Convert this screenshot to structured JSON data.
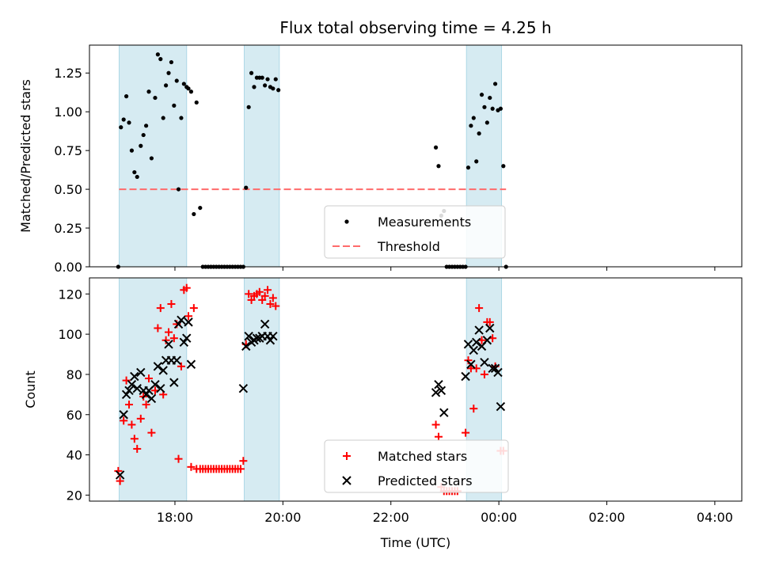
{
  "chart_data": {
    "title": "Flux total observing time = 4.25 h",
    "xlabel": "Time (UTC)",
    "x_ticks": [
      {
        "t": 60,
        "label": "18:00"
      },
      {
        "t": 180,
        "label": "20:00"
      },
      {
        "t": 300,
        "label": "22:00"
      },
      {
        "t": 420,
        "label": "00:00"
      },
      {
        "t": 540,
        "label": "02:00"
      },
      {
        "t": 660,
        "label": "04:00"
      }
    ],
    "xlim": [
      -35,
      690
    ],
    "shaded_intervals": [
      [
        -2,
        73
      ],
      [
        137,
        176
      ],
      [
        384,
        423
      ]
    ],
    "colors": {
      "shade": "#add8e6",
      "measurement": "#000000",
      "threshold": "#ff6b6b",
      "matched": "#ff0000",
      "predicted": "#000000"
    },
    "panels": [
      {
        "type": "scatter",
        "ylabel": "Matched/Predicted stars",
        "ylim": [
          0,
          1.43
        ],
        "yticks": [
          0.0,
          0.25,
          0.5,
          0.75,
          1.0,
          1.25
        ],
        "ytick_labels": [
          "0.00",
          "0.25",
          "0.50",
          "0.75",
          "1.00",
          "1.25"
        ],
        "threshold": {
          "value": 0.5,
          "x": [
            -2,
            428
          ]
        },
        "legend": {
          "placement": "bottom-center",
          "entries": [
            "Measurements",
            "Threshold"
          ]
        },
        "series": [
          {
            "name": "Measurements",
            "marker": "dot",
            "points": [
              [
                -3,
                0.0
              ],
              [
                0,
                0.9
              ],
              [
                3,
                0.95
              ],
              [
                6,
                1.1
              ],
              [
                9,
                0.93
              ],
              [
                12,
                0.75
              ],
              [
                15,
                0.61
              ],
              [
                18,
                0.58
              ],
              [
                22,
                0.78
              ],
              [
                25,
                0.85
              ],
              [
                28,
                0.91
              ],
              [
                31,
                1.13
              ],
              [
                34,
                0.7
              ],
              [
                38,
                1.09
              ],
              [
                41,
                1.37
              ],
              [
                44,
                1.34
              ],
              [
                47,
                0.96
              ],
              [
                50,
                1.17
              ],
              [
                53,
                1.25
              ],
              [
                56,
                1.32
              ],
              [
                59,
                1.04
              ],
              [
                62,
                1.2
              ],
              [
                64,
                0.5
              ],
              [
                67,
                0.96
              ],
              [
                70,
                1.18
              ],
              [
                73,
                1.16
              ],
              [
                75,
                1.15
              ],
              [
                78,
                1.13
              ],
              [
                81,
                0.34
              ],
              [
                84,
                1.06
              ],
              [
                88,
                0.38
              ],
              [
                91,
                0.0
              ],
              [
                94,
                0.0
              ],
              [
                97,
                0.0
              ],
              [
                100,
                0.0
              ],
              [
                103,
                0.0
              ],
              [
                106,
                0.0
              ],
              [
                109,
                0.0
              ],
              [
                112,
                0.0
              ],
              [
                115,
                0.0
              ],
              [
                118,
                0.0
              ],
              [
                121,
                0.0
              ],
              [
                124,
                0.0
              ],
              [
                127,
                0.0
              ],
              [
                130,
                0.0
              ],
              [
                133,
                0.0
              ],
              [
                136,
                0.0
              ],
              [
                139,
                0.51
              ],
              [
                142,
                1.03
              ],
              [
                145,
                1.25
              ],
              [
                148,
                1.16
              ],
              [
                151,
                1.22
              ],
              [
                154,
                1.22
              ],
              [
                157,
                1.22
              ],
              [
                160,
                1.17
              ],
              [
                163,
                1.21
              ],
              [
                166,
                1.16
              ],
              [
                169,
                1.15
              ],
              [
                172,
                1.21
              ],
              [
                175,
                1.14
              ],
              [
                350,
                0.77
              ],
              [
                353,
                0.65
              ],
              [
                356,
                0.33
              ],
              [
                359,
                0.36
              ],
              [
                362,
                0.0
              ],
              [
                365,
                0.0
              ],
              [
                368,
                0.0
              ],
              [
                371,
                0.0
              ],
              [
                374,
                0.0
              ],
              [
                377,
                0.0
              ],
              [
                380,
                0.0
              ],
              [
                383,
                0.0
              ],
              [
                386,
                0.64
              ],
              [
                389,
                0.91
              ],
              [
                392,
                0.96
              ],
              [
                395,
                0.68
              ],
              [
                398,
                0.86
              ],
              [
                401,
                1.11
              ],
              [
                404,
                1.03
              ],
              [
                407,
                0.93
              ],
              [
                410,
                1.09
              ],
              [
                413,
                1.02
              ],
              [
                416,
                1.18
              ],
              [
                419,
                1.01
              ],
              [
                422,
                1.02
              ],
              [
                425,
                0.65
              ],
              [
                428,
                0.0
              ]
            ]
          }
        ]
      },
      {
        "type": "scatter",
        "ylabel": "Count",
        "ylim": [
          17,
          128
        ],
        "yticks": [
          20,
          40,
          60,
          80,
          100,
          120
        ],
        "ytick_labels": [
          "20",
          "40",
          "60",
          "80",
          "100",
          "120"
        ],
        "legend": {
          "placement": "bottom-center",
          "entries": [
            "Matched stars",
            "Predicted stars"
          ]
        },
        "series": [
          {
            "name": "Matched stars",
            "marker": "plus",
            "points": [
              [
                -3,
                32
              ],
              [
                -1,
                27
              ],
              [
                3,
                57
              ],
              [
                6,
                77
              ],
              [
                9,
                65
              ],
              [
                12,
                55
              ],
              [
                15,
                48
              ],
              [
                18,
                43
              ],
              [
                22,
                58
              ],
              [
                25,
                69
              ],
              [
                28,
                65
              ],
              [
                31,
                78
              ],
              [
                34,
                51
              ],
              [
                38,
                72
              ],
              [
                41,
                103
              ],
              [
                44,
                113
              ],
              [
                47,
                70
              ],
              [
                50,
                97
              ],
              [
                53,
                101
              ],
              [
                56,
                115
              ],
              [
                59,
                98
              ],
              [
                62,
                105
              ],
              [
                64,
                38
              ],
              [
                67,
                84
              ],
              [
                70,
                122
              ],
              [
                73,
                123
              ],
              [
                75,
                109
              ],
              [
                78,
                34
              ],
              [
                81,
                113
              ],
              [
                84,
                33
              ],
              [
                88,
                33
              ],
              [
                91,
                33
              ],
              [
                94,
                33
              ],
              [
                97,
                33
              ],
              [
                100,
                33
              ],
              [
                103,
                33
              ],
              [
                106,
                33
              ],
              [
                109,
                33
              ],
              [
                112,
                33
              ],
              [
                115,
                33
              ],
              [
                118,
                33
              ],
              [
                121,
                33
              ],
              [
                124,
                33
              ],
              [
                127,
                33
              ],
              [
                130,
                33
              ],
              [
                133,
                33
              ],
              [
                136,
                37
              ],
              [
                139,
                95
              ],
              [
                142,
                120
              ],
              [
                145,
                117
              ],
              [
                148,
                119
              ],
              [
                151,
                120
              ],
              [
                154,
                121
              ],
              [
                157,
                117
              ],
              [
                160,
                119
              ],
              [
                163,
                122
              ],
              [
                166,
                115
              ],
              [
                169,
                118
              ],
              [
                172,
                114
              ],
              [
                350,
                55
              ],
              [
                353,
                49
              ],
              [
                356,
                24
              ],
              [
                359,
                22
              ],
              [
                362,
                22
              ],
              [
                365,
                22
              ],
              [
                368,
                22
              ],
              [
                371,
                22
              ],
              [
                374,
                22
              ],
              [
                383,
                51
              ],
              [
                386,
                87
              ],
              [
                389,
                83
              ],
              [
                392,
                63
              ],
              [
                395,
                83
              ],
              [
                398,
                113
              ],
              [
                401,
                97
              ],
              [
                404,
                80
              ],
              [
                407,
                106
              ],
              [
                410,
                106
              ],
              [
                413,
                98
              ],
              [
                416,
                84
              ],
              [
                422,
                42
              ],
              [
                425,
                42
              ]
            ]
          },
          {
            "name": "Predicted stars",
            "marker": "x",
            "points": [
              [
                -1,
                30
              ],
              [
                3,
                60
              ],
              [
                6,
                70
              ],
              [
                9,
                72
              ],
              [
                12,
                75
              ],
              [
                15,
                79
              ],
              [
                18,
                73
              ],
              [
                22,
                81
              ],
              [
                25,
                72
              ],
              [
                28,
                70
              ],
              [
                31,
                72
              ],
              [
                34,
                68
              ],
              [
                38,
                75
              ],
              [
                41,
                84
              ],
              [
                44,
                73
              ],
              [
                47,
                82
              ],
              [
                50,
                87
              ],
              [
                53,
                95
              ],
              [
                56,
                87
              ],
              [
                59,
                76
              ],
              [
                62,
                87
              ],
              [
                64,
                105
              ],
              [
                67,
                107
              ],
              [
                70,
                96
              ],
              [
                73,
                98
              ],
              [
                75,
                106
              ],
              [
                78,
                85
              ],
              [
                136,
                73
              ],
              [
                139,
                94
              ],
              [
                142,
                99
              ],
              [
                145,
                96
              ],
              [
                148,
                97
              ],
              [
                151,
                98
              ],
              [
                154,
                98
              ],
              [
                157,
                99
              ],
              [
                160,
                105
              ],
              [
                163,
                99
              ],
              [
                166,
                97
              ],
              [
                169,
                99
              ],
              [
                350,
                71
              ],
              [
                353,
                75
              ],
              [
                356,
                72
              ],
              [
                359,
                61
              ],
              [
                383,
                79
              ],
              [
                386,
                95
              ],
              [
                389,
                85
              ],
              [
                392,
                92
              ],
              [
                395,
                96
              ],
              [
                398,
                102
              ],
              [
                401,
                94
              ],
              [
                404,
                86
              ],
              [
                407,
                97
              ],
              [
                410,
                103
              ],
              [
                413,
                83
              ],
              [
                416,
                83
              ],
              [
                419,
                81
              ],
              [
                422,
                64
              ]
            ]
          }
        ]
      }
    ]
  }
}
